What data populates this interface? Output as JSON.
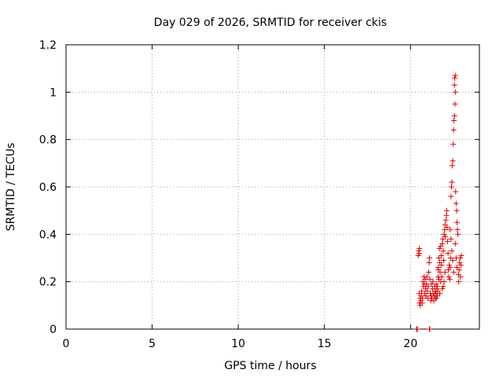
{
  "chart_data": {
    "type": "scatter",
    "title": "Day 029 of 2026, SRMTID for receiver ckis",
    "xlabel": "GPS time / hours",
    "ylabel": "SRMTID / TECUs",
    "xlim": [
      0,
      24
    ],
    "ylim": [
      0,
      1.2
    ],
    "xticks": [
      "0",
      "5",
      "10",
      "15",
      "20"
    ],
    "xtick_values": [
      0,
      5,
      10,
      15,
      20
    ],
    "yticks": [
      "0",
      "0.2",
      "0.4",
      "0.6",
      "0.8",
      "1",
      "1.2"
    ],
    "ytick_values": [
      0,
      0.2,
      0.4,
      0.6,
      0.8,
      1.0,
      1.2
    ],
    "grid": true,
    "marker": "+",
    "color": "#e00000",
    "series": [
      {
        "name": "SRMTID",
        "points": [
          [
            20.35,
            0.0
          ],
          [
            20.4,
            0.0
          ],
          [
            21.1,
            0.0
          ],
          [
            21.12,
            0.0
          ],
          [
            20.45,
            0.31
          ],
          [
            20.48,
            0.33
          ],
          [
            20.5,
            0.32
          ],
          [
            20.52,
            0.34
          ],
          [
            20.5,
            0.15
          ],
          [
            20.52,
            0.11
          ],
          [
            20.55,
            0.13
          ],
          [
            20.57,
            0.1
          ],
          [
            20.6,
            0.12
          ],
          [
            20.62,
            0.14
          ],
          [
            20.65,
            0.16
          ],
          [
            20.68,
            0.11
          ],
          [
            20.7,
            0.13
          ],
          [
            20.72,
            0.2
          ],
          [
            20.75,
            0.18
          ],
          [
            20.78,
            0.22
          ],
          [
            20.8,
            0.19
          ],
          [
            20.82,
            0.15
          ],
          [
            20.85,
            0.21
          ],
          [
            20.88,
            0.17
          ],
          [
            20.9,
            0.14
          ],
          [
            20.92,
            0.19
          ],
          [
            20.95,
            0.22
          ],
          [
            20.98,
            0.16
          ],
          [
            21.0,
            0.13
          ],
          [
            21.02,
            0.18
          ],
          [
            21.05,
            0.24
          ],
          [
            21.08,
            0.28
          ],
          [
            21.1,
            0.3
          ],
          [
            21.12,
            0.21
          ],
          [
            21.15,
            0.15
          ],
          [
            21.18,
            0.12
          ],
          [
            21.2,
            0.14
          ],
          [
            21.22,
            0.19
          ],
          [
            21.25,
            0.13
          ],
          [
            21.28,
            0.17
          ],
          [
            21.3,
            0.2
          ],
          [
            21.32,
            0.15
          ],
          [
            21.35,
            0.12
          ],
          [
            21.38,
            0.14
          ],
          [
            21.4,
            0.18
          ],
          [
            21.42,
            0.16
          ],
          [
            21.45,
            0.13
          ],
          [
            21.48,
            0.15
          ],
          [
            21.5,
            0.19
          ],
          [
            21.52,
            0.17
          ],
          [
            21.55,
            0.14
          ],
          [
            21.58,
            0.16
          ],
          [
            21.6,
            0.22
          ],
          [
            21.62,
            0.25
          ],
          [
            21.65,
            0.3
          ],
          [
            21.68,
            0.34
          ],
          [
            21.7,
            0.28
          ],
          [
            21.72,
            0.24
          ],
          [
            21.75,
            0.35
          ],
          [
            21.78,
            0.31
          ],
          [
            21.8,
            0.27
          ],
          [
            21.82,
            0.22
          ],
          [
            21.85,
            0.36
          ],
          [
            21.88,
            0.38
          ],
          [
            21.9,
            0.33
          ],
          [
            21.92,
            0.29
          ],
          [
            21.95,
            0.4
          ],
          [
            21.98,
            0.42
          ],
          [
            22.0,
            0.44
          ],
          [
            22.02,
            0.39
          ],
          [
            22.05,
            0.46
          ],
          [
            22.08,
            0.48
          ],
          [
            22.1,
            0.5
          ],
          [
            22.12,
            0.43
          ],
          [
            22.15,
            0.37
          ],
          [
            22.18,
            0.32
          ],
          [
            22.2,
            0.25
          ],
          [
            22.22,
            0.22
          ],
          [
            22.25,
            0.27
          ],
          [
            22.28,
            0.21
          ],
          [
            22.3,
            0.26
          ],
          [
            22.32,
            0.3
          ],
          [
            22.35,
            0.56
          ],
          [
            22.38,
            0.6
          ],
          [
            22.4,
            0.62
          ],
          [
            22.42,
            0.69
          ],
          [
            22.45,
            0.71
          ],
          [
            22.48,
            0.78
          ],
          [
            22.5,
            0.84
          ],
          [
            22.52,
            0.88
          ],
          [
            22.55,
            0.9
          ],
          [
            22.58,
            0.95
          ],
          [
            22.6,
            1.0
          ],
          [
            22.55,
            1.03
          ],
          [
            22.57,
            1.06
          ],
          [
            22.6,
            1.07
          ],
          [
            22.62,
            0.58
          ],
          [
            22.65,
            0.53
          ],
          [
            22.68,
            0.5
          ],
          [
            22.7,
            0.45
          ],
          [
            22.72,
            0.42
          ],
          [
            22.75,
            0.4
          ],
          [
            22.78,
            0.23
          ],
          [
            22.8,
            0.2
          ],
          [
            22.82,
            0.25
          ],
          [
            22.85,
            0.28
          ],
          [
            22.88,
            0.3
          ],
          [
            22.9,
            0.22
          ],
          [
            22.92,
            0.27
          ],
          [
            22.95,
            0.31
          ],
          [
            22.6,
            0.36
          ],
          [
            22.65,
            0.3
          ],
          [
            22.7,
            0.26
          ],
          [
            22.5,
            0.24
          ],
          [
            22.45,
            0.29
          ],
          [
            22.4,
            0.33
          ],
          [
            22.35,
            0.38
          ],
          [
            22.3,
            0.42
          ],
          [
            21.9,
            0.18
          ],
          [
            21.95,
            0.2
          ],
          [
            22.0,
            0.24
          ],
          [
            21.85,
            0.17
          ],
          [
            21.75,
            0.2
          ],
          [
            21.7,
            0.15
          ],
          [
            21.65,
            0.21
          ],
          [
            21.6,
            0.26
          ],
          [
            21.55,
            0.18
          ],
          [
            21.5,
            0.13
          ]
        ]
      }
    ]
  }
}
